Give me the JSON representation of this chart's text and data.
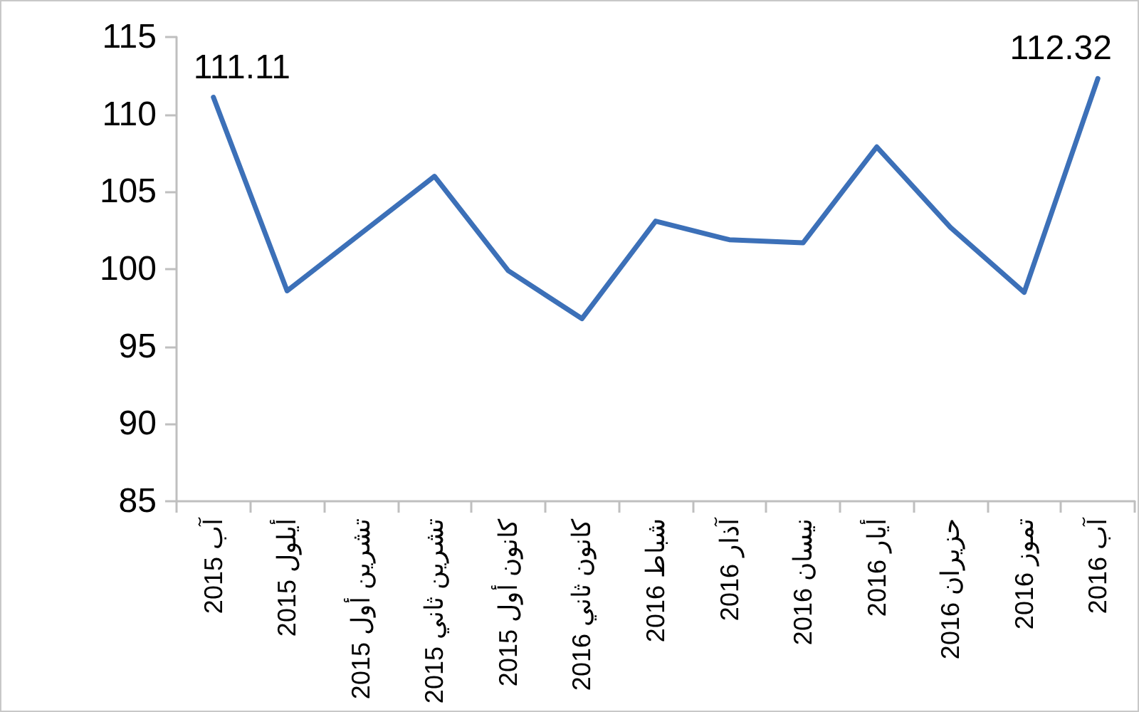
{
  "chart_data": {
    "type": "line",
    "categories": [
      "آب 2015",
      "أيلول 2015",
      "تشرين أول 2015",
      "تشرين ثاني 2015",
      "كانون أول 2015",
      "كانون ثاني 2016",
      "شباط 2016",
      "آذار 2016",
      "نيسان 2016",
      "أيار 2016",
      "حزيران 2016",
      "تموز 2016",
      "آب 2016"
    ],
    "values": [
      111.11,
      98.6,
      102.3,
      106.0,
      99.9,
      96.8,
      103.1,
      101.9,
      101.7,
      107.9,
      102.7,
      98.5,
      112.32
    ],
    "value_labels": [
      "111.11",
      null,
      null,
      null,
      null,
      null,
      null,
      null,
      null,
      null,
      null,
      null,
      "112.32"
    ],
    "color": "#3c70b8",
    "ylim": [
      85,
      115
    ],
    "yticks": [
      85,
      90,
      95,
      100,
      105,
      110,
      115
    ],
    "grid": false,
    "marker": "none"
  }
}
